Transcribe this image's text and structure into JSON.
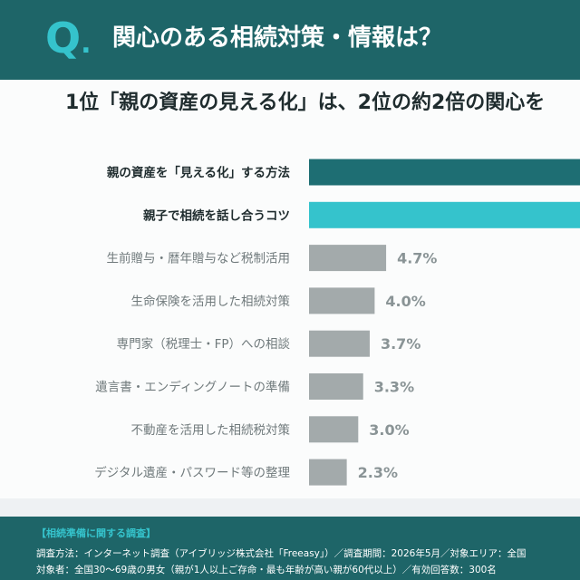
{
  "header": {
    "q_mark": "Q",
    "q_dot": ".",
    "title": "関心のある相続対策・情報は？"
  },
  "subtitle": "1位「親の資産の見える化」は、2位の約2倍の関心を",
  "colors": {
    "header_bg": "#1e6568",
    "q_accent": "#35c3cc",
    "bar_top1": "#1e6e73",
    "bar_top2": "#35c3cc",
    "bar_other": "#a3aaab",
    "label_top": "#1f2c2e",
    "label_other": "#707a7c",
    "value_text": "#8a9496"
  },
  "chart_data": {
    "type": "bar",
    "orientation": "horizontal",
    "title": "関心のある相続対策・情報は？",
    "categories": [
      "親の資産を「見える化」する方法",
      "親子で相続を話し合うコツ",
      "生前贈与・暦年贈与など税制活用",
      "生命保険を活用した相続対策",
      "専門家（税理士・FP）への相談",
      "遺言書・エンディングノートの準備",
      "不動産を活用した相続税対策",
      "デジタル遺産・パスワード等の整理"
    ],
    "values": [
      null,
      null,
      4.7,
      4.0,
      3.7,
      3.3,
      3.0,
      2.3
    ],
    "value_labels": [
      "",
      "",
      "4.7%",
      "4.0%",
      "3.7%",
      "3.3%",
      "3.0%",
      "2.3%"
    ],
    "highlight": [
      true,
      true,
      false,
      false,
      false,
      false,
      false,
      false
    ],
    "unit": "%"
  },
  "footer": {
    "heading": "【相続準備に関する調査】",
    "line1": "調査方法：インターネット調査（アイブリッジ株式会社「Freeasy」）／調査期間：2026年5月／対象エリア：全国",
    "line2": "対象者：全国30～69歳の男女（親が1人以上ご存命・最も年齢が高い親が60代以上）／有効回答数：300名"
  }
}
